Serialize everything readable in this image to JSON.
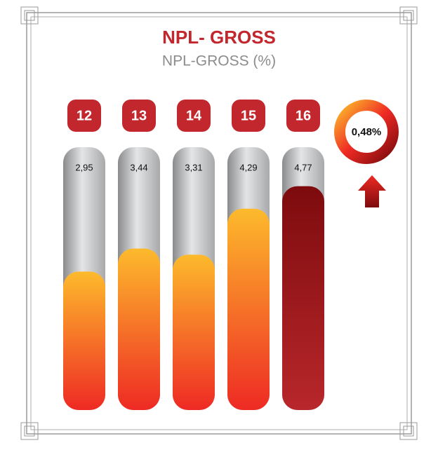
{
  "chart_data": {
    "type": "bar",
    "title": "NPL- GROSS",
    "subtitle": "NPL-GROSS (%)",
    "categories": [
      "12",
      "13",
      "14",
      "15",
      "16"
    ],
    "values": [
      2.95,
      3.44,
      3.31,
      4.29,
      4.77
    ],
    "value_labels": [
      "2,95",
      "3,44",
      "3,31",
      "4,29",
      "4,77"
    ],
    "colors": [
      "#fdba2c",
      "#fdba2c",
      "#fdba2c",
      "#fdba2c",
      "#7d0b0d"
    ],
    "ylim": [
      0,
      5.6
    ],
    "annotation": "0,48%"
  }
}
